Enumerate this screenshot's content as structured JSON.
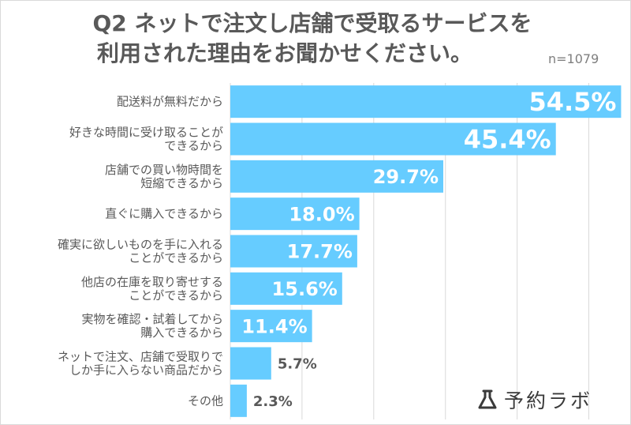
{
  "title": {
    "line1": "Q2 ネットで注文し店舗で受取るサービスを",
    "line2": "利用された理由をお聞かせください。",
    "sample_size": "n=1079"
  },
  "logo": {
    "name": "予約ラボ",
    "icon": "lab-flask-icon"
  },
  "colors": {
    "bar": "#66ccff",
    "grid": "#d9d9d9",
    "text": "#595959",
    "value_outside": "#595959",
    "value_inside": "#ffffff"
  },
  "chart_data": {
    "type": "bar",
    "orientation": "horizontal",
    "categories": [
      [
        "配送料が無料だから"
      ],
      [
        "好きな時間に受け取ることが",
        "できるから"
      ],
      [
        "店舗での買い物時間を",
        "短縮できるから"
      ],
      [
        "直ぐに購入できるから"
      ],
      [
        "確実に欲しいものを手に入れる",
        "ことができるから"
      ],
      [
        "他店の在庫を取り寄せする",
        "ことができるから"
      ],
      [
        "実物を確認・試着してから",
        "購入できるから"
      ],
      [
        "ネットで注文、店舗で受取りで",
        "しか手に入らない商品だから"
      ],
      [
        "その他"
      ]
    ],
    "values": [
      54.5,
      45.4,
      29.7,
      18.0,
      17.7,
      15.6,
      11.4,
      5.7,
      2.3
    ],
    "value_labels": [
      "54.5%",
      "45.4%",
      "29.7%",
      "18.0%",
      "17.7%",
      "15.6%",
      "11.4%",
      "5.7%",
      "2.3%"
    ],
    "unit": "%",
    "xlim": [
      0,
      55
    ],
    "grid": true
  }
}
